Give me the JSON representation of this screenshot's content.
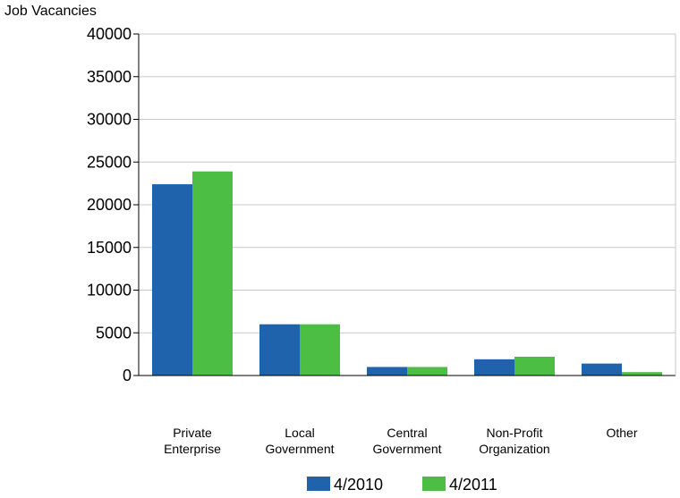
{
  "chart_data": {
    "type": "bar",
    "ylabel": "Job Vacancies",
    "ylim": [
      0,
      40000
    ],
    "yticks": [
      0,
      5000,
      10000,
      15000,
      20000,
      25000,
      30000,
      35000,
      40000
    ],
    "categories": [
      [
        "Private",
        "Enterprise"
      ],
      [
        "Local",
        "Government"
      ],
      [
        "Central",
        "Government"
      ],
      [
        "Non-Profit",
        "Organization"
      ],
      [
        "Other"
      ]
    ],
    "series": [
      {
        "name": "4/2010",
        "color": "#1f63ad",
        "values": [
          22400,
          6000,
          1000,
          1900,
          1400
        ]
      },
      {
        "name": "4/2011",
        "color": "#4dbe44",
        "values": [
          23900,
          6000,
          1000,
          2200,
          400
        ]
      }
    ],
    "grid": true,
    "legend_position": "bottom"
  }
}
